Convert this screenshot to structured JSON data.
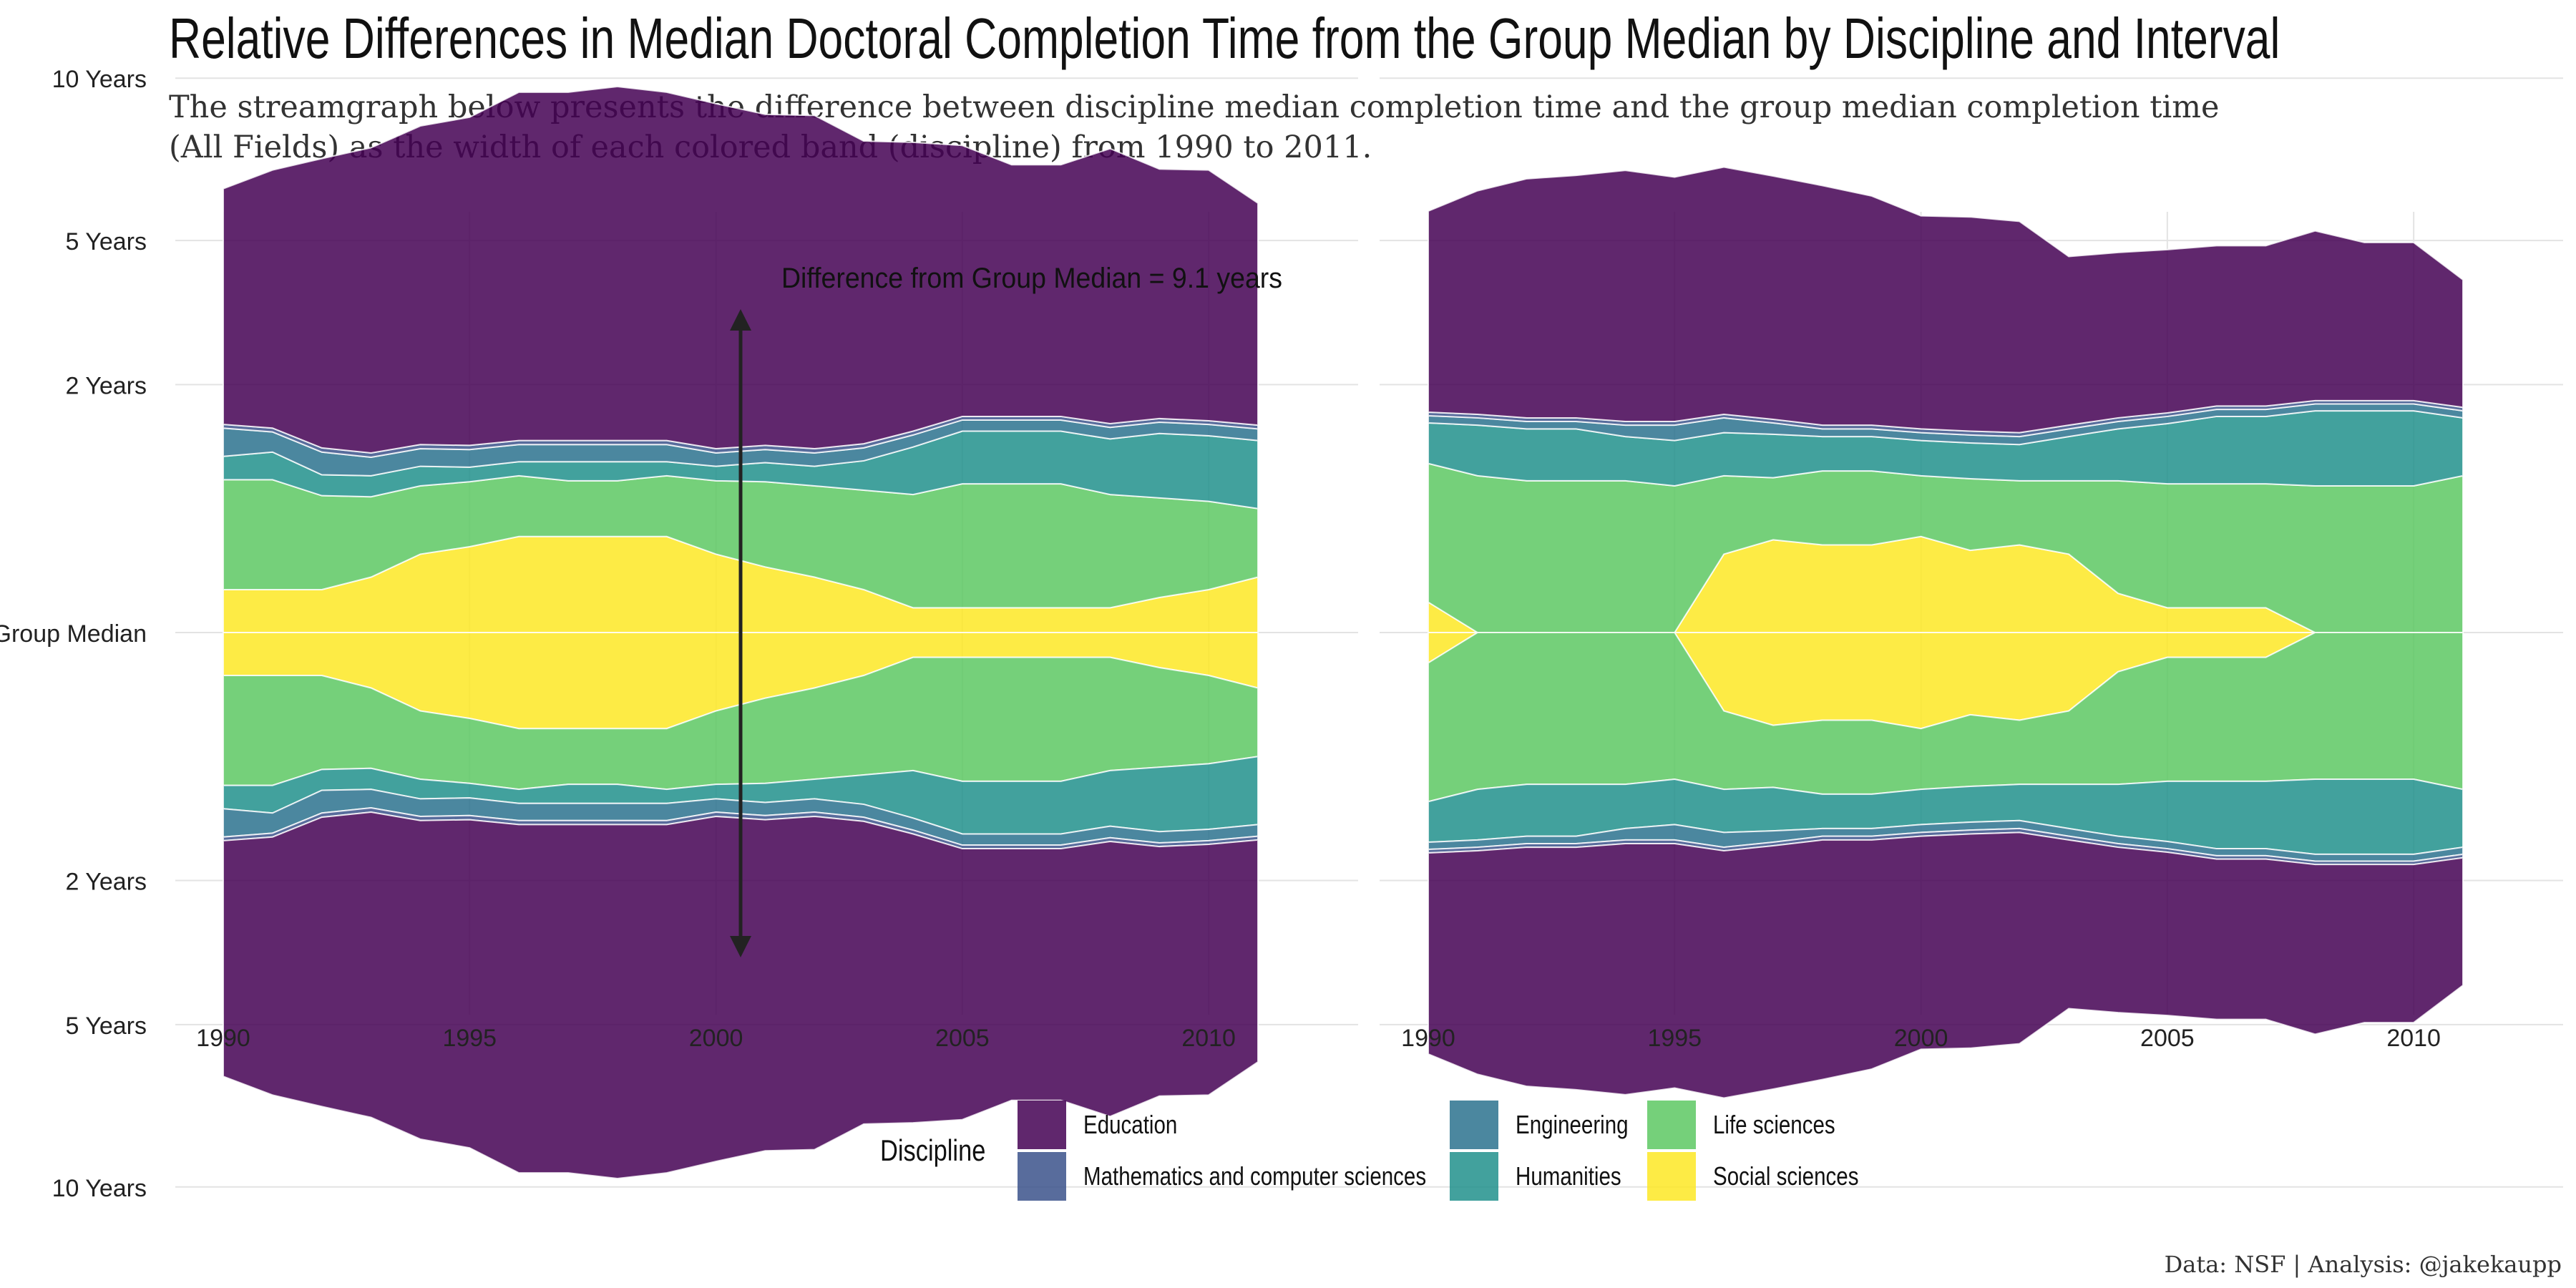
{
  "title": "Relative Differences in Median Doctoral Completion Time from the Group Median by Discipline and Interval",
  "subtitle": "The streamgraph below presents the difference between discipline median completion time and the group median completion time (All Fields) as the width of each colored band (discipline) from 1990 to 2011.",
  "caption": "Data: NSF | Analysis: @jakekaupp",
  "annotation": "Difference from Group Median = 9.1 years",
  "legend": {
    "title": "Discipline",
    "items": [
      {
        "name": "Education",
        "color": "#440154"
      },
      {
        "name": "Mathematics and computer sciences",
        "color": "#3B528B"
      },
      {
        "name": "Engineering",
        "color": "#2C728E"
      },
      {
        "name": "Humanities",
        "color": "#21908C"
      },
      {
        "name": "Life sciences",
        "color": "#5DC863"
      },
      {
        "name": "Social sciences",
        "color": "#FDE725"
      }
    ]
  },
  "chart_data": {
    "type": "area",
    "style": "symmetric streamgraph, two panels",
    "x_ticks": [
      1990,
      1995,
      2000,
      2005,
      2010
    ],
    "y_ticks": [
      {
        "value": 10,
        "label": "10 Years"
      },
      {
        "value": 5,
        "label": "5 Years"
      },
      {
        "value": 2,
        "label": "2 Years"
      },
      {
        "value": 0,
        "label": "Group Median"
      },
      {
        "value": -2,
        "label": "2 Years"
      },
      {
        "value": -5,
        "label": "5 Years"
      },
      {
        "value": -10,
        "label": "10 Years"
      }
    ],
    "y_scale": "square-root",
    "ylim": [
      -10,
      10
    ],
    "xlim": [
      1990,
      2011
    ],
    "grid": true,
    "legend_position": "bottom",
    "series_order": [
      "Social sciences",
      "Life sciences",
      "Humanities",
      "Engineering",
      "Mathematics and computer sciences",
      "Education"
    ],
    "panels": [
      {
        "x": [
          1990,
          1991,
          1992,
          1993,
          1994,
          1995,
          1996,
          1997,
          1998,
          1999,
          2000,
          2001,
          2002,
          2003,
          2004,
          2005,
          2006,
          2007,
          2008,
          2009,
          2010,
          2011
        ],
        "series": [
          {
            "name": "Social sciences",
            "values": [
              0.06,
              0.06,
              0.06,
              0.1,
              0.2,
              0.24,
              0.3,
              0.3,
              0.3,
              0.3,
              0.2,
              0.14,
              0.1,
              0.06,
              0.02,
              0.02,
              0.02,
              0.02,
              0.02,
              0.04,
              0.06,
              0.1
            ]
          },
          {
            "name": "Life sciences",
            "values": [
              0.7,
              0.7,
              0.55,
              0.5,
              0.5,
              0.5,
              0.5,
              0.45,
              0.45,
              0.5,
              0.55,
              0.6,
              0.6,
              0.6,
              0.6,
              0.7,
              0.7,
              0.7,
              0.6,
              0.55,
              0.5,
              0.4
            ]
          },
          {
            "name": "Humanities",
            "values": [
              0.25,
              0.3,
              0.2,
              0.2,
              0.2,
              0.15,
              0.15,
              0.2,
              0.2,
              0.15,
              0.15,
              0.2,
              0.2,
              0.3,
              0.5,
              0.6,
              0.6,
              0.6,
              0.6,
              0.7,
              0.7,
              0.7
            ]
          },
          {
            "name": "Engineering",
            "values": [
              0.35,
              0.25,
              0.25,
              0.2,
              0.2,
              0.2,
              0.2,
              0.2,
              0.2,
              0.2,
              0.15,
              0.15,
              0.15,
              0.15,
              0.15,
              0.15,
              0.15,
              0.15,
              0.15,
              0.15,
              0.15,
              0.15
            ]
          },
          {
            "name": "Mathematics and computer sciences",
            "values": [
              0.05,
              0.05,
              0.05,
              0.05,
              0.05,
              0.05,
              0.05,
              0.05,
              0.05,
              0.05,
              0.05,
              0.05,
              0.05,
              0.05,
              0.05,
              0.05,
              0.05,
              0.05,
              0.05,
              0.05,
              0.05,
              0.05
            ]
          },
          {
            "name": "Education",
            "values": [
              5.0,
              5.6,
              6.2,
              6.6,
              7.2,
              7.5,
              8.3,
              8.3,
              8.5,
              8.3,
              8.0,
              7.6,
              7.6,
              6.7,
              6.5,
              6.2,
              5.6,
              5.6,
              6.2,
              5.5,
              5.5,
              4.6
            ]
          }
        ]
      },
      {
        "x": [
          1990,
          1991,
          1992,
          1993,
          1994,
          1995,
          1996,
          1997,
          1998,
          1999,
          2000,
          2001,
          2002,
          2003,
          2004,
          2005,
          2006,
          2007,
          2008,
          2009,
          2010,
          2011
        ],
        "series": [
          {
            "name": "Social sciences",
            "values": [
              0.03,
              0.0,
              0.0,
              0.0,
              0.0,
              0.0,
              0.2,
              0.28,
              0.25,
              0.25,
              0.3,
              0.22,
              0.25,
              0.2,
              0.05,
              0.02,
              0.02,
              0.02,
              0.0,
              0.0,
              0.0,
              0.0
            ]
          },
          {
            "name": "Life sciences",
            "values": [
              0.9,
              0.8,
              0.75,
              0.75,
              0.75,
              0.7,
              0.6,
              0.5,
              0.6,
              0.6,
              0.5,
              0.55,
              0.5,
              0.55,
              0.7,
              0.7,
              0.7,
              0.7,
              0.7,
              0.7,
              0.7,
              0.8
            ]
          },
          {
            "name": "Humanities",
            "values": [
              0.5,
              0.6,
              0.6,
              0.6,
              0.5,
              0.5,
              0.5,
              0.5,
              0.4,
              0.4,
              0.4,
              0.4,
              0.4,
              0.5,
              0.6,
              0.7,
              0.8,
              0.8,
              0.9,
              0.9,
              0.9,
              0.7
            ]
          },
          {
            "name": "Engineering",
            "values": [
              0.1,
              0.1,
              0.1,
              0.1,
              0.15,
              0.2,
              0.2,
              0.15,
              0.1,
              0.1,
              0.1,
              0.1,
              0.1,
              0.1,
              0.1,
              0.1,
              0.1,
              0.1,
              0.1,
              0.1,
              0.1,
              0.1
            ]
          },
          {
            "name": "Mathematics and computer sciences",
            "values": [
              0.05,
              0.05,
              0.05,
              0.05,
              0.05,
              0.05,
              0.05,
              0.05,
              0.05,
              0.05,
              0.05,
              0.05,
              0.05,
              0.05,
              0.05,
              0.05,
              0.05,
              0.05,
              0.05,
              0.05,
              0.05,
              0.05
            ]
          },
          {
            "name": "Education",
            "values": [
              4.2,
              4.8,
              5.2,
              5.3,
              5.5,
              5.3,
              5.5,
              5.3,
              5.1,
              4.8,
              4.3,
              4.3,
              4.2,
              3.2,
              3.2,
              3.2,
              3.2,
              3.2,
              3.5,
              3.2,
              3.2,
              2.4
            ]
          }
        ]
      }
    ]
  }
}
